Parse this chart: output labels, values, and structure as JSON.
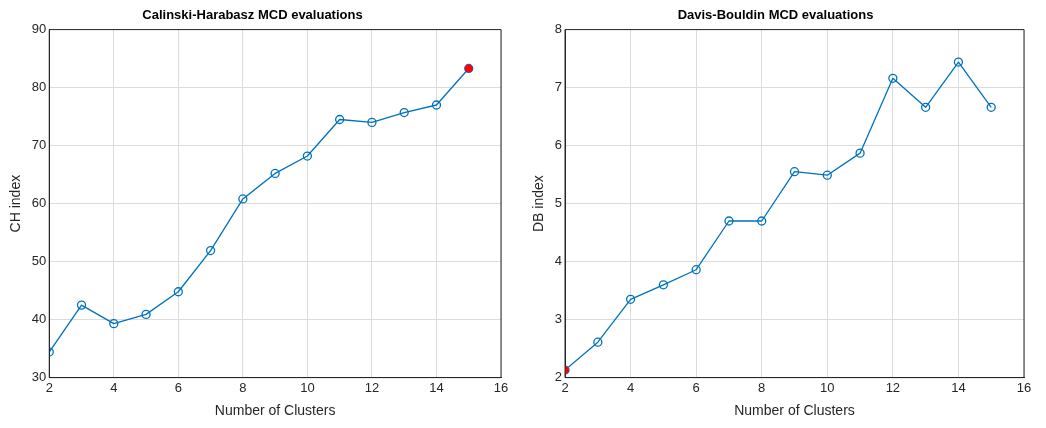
{
  "chart_data": [
    {
      "type": "line",
      "title": "Calinski-Harabasz MCD evaluations",
      "xlabel": "Number of Clusters",
      "ylabel": "CH index",
      "x": [
        2,
        3,
        4,
        5,
        6,
        7,
        8,
        9,
        10,
        11,
        12,
        13,
        14,
        15
      ],
      "series": [
        {
          "type": "line",
          "color": "#0072bd",
          "values": [
            34.4,
            42.5,
            39.3,
            40.9,
            44.8,
            51.9,
            60.8,
            65.2,
            68.2,
            74.5,
            74.0,
            75.7,
            77.0,
            83.3
          ]
        },
        {
          "type": "scatter",
          "color": "#ff0000",
          "x": [
            15
          ],
          "values": [
            83.3
          ]
        }
      ],
      "xlim": [
        2,
        16
      ],
      "xticks": [
        2,
        4,
        6,
        8,
        10,
        12,
        14,
        16
      ],
      "ylim": [
        30,
        90
      ],
      "yticks": [
        30,
        40,
        50,
        60,
        70,
        80,
        90
      ],
      "grid": true,
      "marker": "circle",
      "line_style": "solid"
    },
    {
      "type": "line",
      "title": "Davis-Bouldin MCD evaluations",
      "xlabel": "Number of Clusters",
      "ylabel": "DB index",
      "x": [
        2,
        3,
        4,
        5,
        6,
        7,
        8,
        9,
        10,
        11,
        12,
        13,
        14,
        15
      ],
      "series": [
        {
          "type": "line",
          "color": "#0072bd",
          "values": [
            2.13,
            2.61,
            3.35,
            3.6,
            3.86,
            4.7,
            4.7,
            5.55,
            5.49,
            5.87,
            7.16,
            6.66,
            7.44,
            6.66
          ]
        },
        {
          "type": "scatter",
          "color": "#ff0000",
          "x": [
            2
          ],
          "values": [
            2.13
          ]
        }
      ],
      "xlim": [
        2,
        16
      ],
      "xticks": [
        2,
        4,
        6,
        8,
        10,
        12,
        14,
        16
      ],
      "ylim": [
        2,
        8
      ],
      "yticks": [
        2,
        3,
        4,
        5,
        6,
        7,
        8
      ],
      "grid": true,
      "marker": "circle",
      "line_style": "solid"
    }
  ]
}
